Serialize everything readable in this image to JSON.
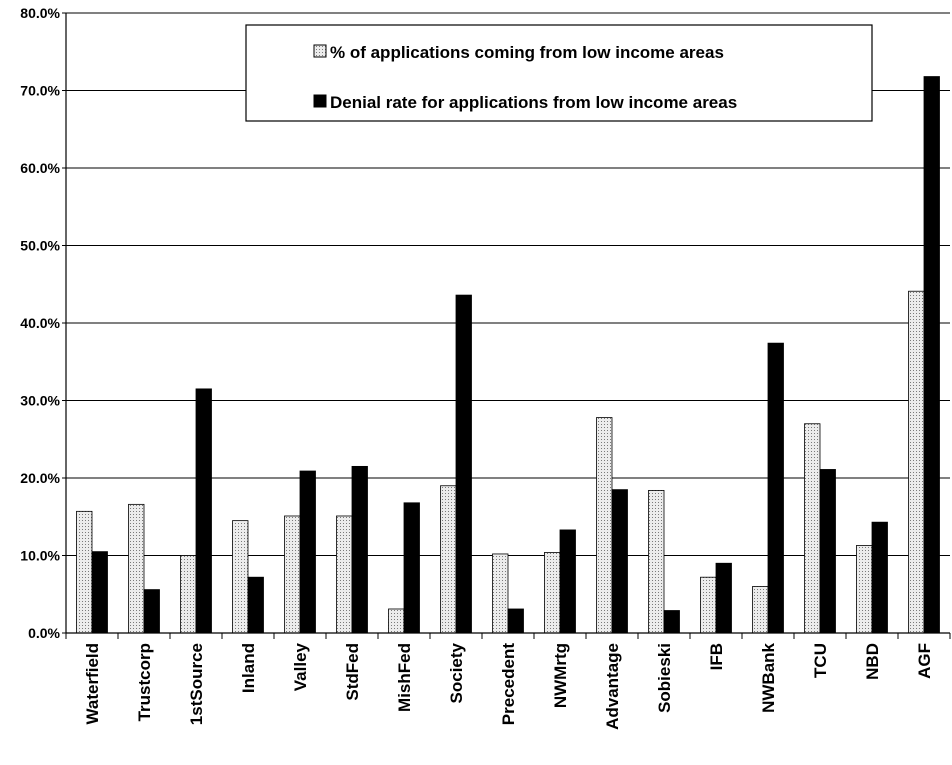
{
  "chart_data": {
    "type": "bar",
    "title": "",
    "xlabel": "",
    "ylabel": "",
    "ylim": [
      0,
      80
    ],
    "yticks": [
      "0.0%",
      "10.0%",
      "20.0%",
      "30.0%",
      "40.0%",
      "50.0%",
      "60.0%",
      "70.0%",
      "80.0%"
    ],
    "grid": true,
    "legend_position": "top-right",
    "categories": [
      "Waterfield",
      "Trustcorp",
      "1stSource",
      "Inland",
      "Valley",
      "StdFed",
      "MishFed",
      "Society",
      "Precedent",
      "NWMrtg",
      "Advantage",
      "Sobieski",
      "IFB",
      "NWBank",
      "TCU",
      "NBD",
      "AGF"
    ],
    "series": [
      {
        "name": "% of applications coming from low income areas",
        "color": "#d9d9d9",
        "pattern": "dotted",
        "values": [
          15.7,
          16.6,
          10.0,
          14.5,
          15.1,
          15.1,
          3.1,
          19.0,
          10.2,
          10.4,
          27.8,
          18.4,
          7.2,
          6.0,
          27.0,
          11.3,
          44.1
        ]
      },
      {
        "name": "Denial rate for applications from low income areas",
        "color": "#000000",
        "pattern": "solid",
        "values": [
          10.5,
          5.6,
          31.5,
          7.2,
          20.9,
          21.5,
          16.8,
          43.6,
          3.1,
          13.3,
          18.5,
          2.9,
          9.0,
          37.4,
          21.1,
          14.3,
          71.8
        ]
      }
    ]
  }
}
